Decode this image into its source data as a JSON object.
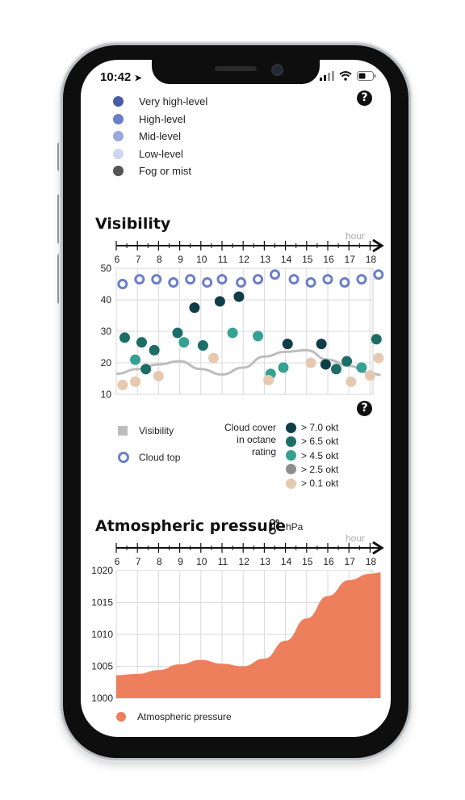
{
  "status_bar": {
    "time": "10:42"
  },
  "cloud_legend": [
    {
      "label": "Very high-level",
      "color": "#4a5ca8"
    },
    {
      "label": "High-level",
      "color": "#6b7fc8"
    },
    {
      "label": "Mid-level",
      "color": "#9aa8dc"
    },
    {
      "label": "Low-level",
      "color": "#cdd5ef"
    },
    {
      "label": "Fog or mist",
      "color": "#555555"
    }
  ],
  "visibility": {
    "title": "Visibility",
    "hour_label": "hour",
    "legend_visibility": "Visibility",
    "legend_cloud_top": "Cloud top",
    "cloud_cover_title": [
      "Cloud cover",
      "in octane",
      "rating"
    ],
    "octane_legend": [
      {
        "label": "> 7.0 okt",
        "color": "#0f3d47"
      },
      {
        "label": "> 6.5 okt",
        "color": "#1b6d65"
      },
      {
        "label": "> 4.5 okt",
        "color": "#35a192"
      },
      {
        "label": "> 2.5 okt",
        "color": "#8e8e8e"
      },
      {
        "label": "> 0.1 okt",
        "color": "#e6c9b1"
      }
    ]
  },
  "chart_data": [
    {
      "type": "scatter",
      "title": "Visibility",
      "x_ticks": [
        "6",
        "7",
        "8",
        "9",
        "10",
        "11",
        "12",
        "13",
        "14",
        "15",
        "16",
        "17",
        "18"
      ],
      "y_ticks": [
        "50",
        "40",
        "30",
        "20",
        "10"
      ],
      "ylim": [
        10,
        50
      ],
      "xlim": [
        6,
        18.5
      ],
      "grid": true,
      "visibility_line": [
        {
          "x": 6,
          "y": 16.5
        },
        {
          "x": 7,
          "y": 18
        },
        {
          "x": 8,
          "y": 19.5
        },
        {
          "x": 9,
          "y": 20.5
        },
        {
          "x": 10,
          "y": 18
        },
        {
          "x": 11,
          "y": 16.3
        },
        {
          "x": 12,
          "y": 18.5
        },
        {
          "x": 13,
          "y": 22
        },
        {
          "x": 14,
          "y": 23.5
        },
        {
          "x": 15,
          "y": 24
        },
        {
          "x": 16,
          "y": 21
        },
        {
          "x": 17,
          "y": 19
        },
        {
          "x": 18,
          "y": 16.8
        },
        {
          "x": 18.5,
          "y": 16.2
        }
      ],
      "cloud_top": [
        {
          "x": 6.3,
          "y": 45
        },
        {
          "x": 7.1,
          "y": 46.5
        },
        {
          "x": 7.9,
          "y": 46.5
        },
        {
          "x": 8.7,
          "y": 45.5
        },
        {
          "x": 9.5,
          "y": 46.5
        },
        {
          "x": 10.3,
          "y": 45.5
        },
        {
          "x": 11,
          "y": 46.5
        },
        {
          "x": 11.9,
          "y": 45.5
        },
        {
          "x": 12.7,
          "y": 46.5
        },
        {
          "x": 13.5,
          "y": 48
        },
        {
          "x": 14.4,
          "y": 46.5
        },
        {
          "x": 15.2,
          "y": 45.5
        },
        {
          "x": 16,
          "y": 46.5
        },
        {
          "x": 16.8,
          "y": 45.5
        },
        {
          "x": 17.6,
          "y": 46.5
        },
        {
          "x": 18.4,
          "y": 48
        }
      ],
      "cloud_cover": [
        {
          "x": 6.4,
          "y": 28,
          "cls": 1
        },
        {
          "x": 6.9,
          "y": 21,
          "cls": 2
        },
        {
          "x": 7.2,
          "y": 26.5,
          "cls": 1
        },
        {
          "x": 7.4,
          "y": 18,
          "cls": 1
        },
        {
          "x": 7.8,
          "y": 24,
          "cls": 1
        },
        {
          "x": 8.9,
          "y": 29.5,
          "cls": 1
        },
        {
          "x": 9.2,
          "y": 26.5,
          "cls": 2
        },
        {
          "x": 9.7,
          "y": 37.5,
          "cls": 0
        },
        {
          "x": 10.1,
          "y": 25.5,
          "cls": 1
        },
        {
          "x": 10.9,
          "y": 39.5,
          "cls": 0
        },
        {
          "x": 11.5,
          "y": 29.5,
          "cls": 2
        },
        {
          "x": 11.8,
          "y": 41,
          "cls": 0
        },
        {
          "x": 12.7,
          "y": 28.5,
          "cls": 2
        },
        {
          "x": 13.3,
          "y": 16.5,
          "cls": 2
        },
        {
          "x": 13.9,
          "y": 18.5,
          "cls": 2
        },
        {
          "x": 14.1,
          "y": 26,
          "cls": 0
        },
        {
          "x": 15.7,
          "y": 26,
          "cls": 0
        },
        {
          "x": 15.9,
          "y": 19.5,
          "cls": 0
        },
        {
          "x": 16.4,
          "y": 18,
          "cls": 1
        },
        {
          "x": 16.9,
          "y": 20.5,
          "cls": 1
        },
        {
          "x": 17.6,
          "y": 18.5,
          "cls": 2
        },
        {
          "x": 18.3,
          "y": 27.5,
          "cls": 1
        },
        {
          "x": 6.3,
          "y": 13,
          "cls": 4
        },
        {
          "x": 6.9,
          "y": 14,
          "cls": 4
        },
        {
          "x": 8.0,
          "y": 15.8,
          "cls": 4
        },
        {
          "x": 10.6,
          "y": 21.5,
          "cls": 4
        },
        {
          "x": 13.2,
          "y": 14.5,
          "cls": 4
        },
        {
          "x": 15.2,
          "y": 20,
          "cls": 4
        },
        {
          "x": 17.1,
          "y": 14,
          "cls": 4
        },
        {
          "x": 18.0,
          "y": 16,
          "cls": 4
        },
        {
          "x": 18.4,
          "y": 21.5,
          "cls": 4
        }
      ]
    },
    {
      "type": "area",
      "title": "Atmospheric pressure",
      "unit": "hPa",
      "x_ticks": [
        "6",
        "7",
        "8",
        "9",
        "10",
        "11",
        "12",
        "13",
        "14",
        "15",
        "16",
        "17",
        "18"
      ],
      "y_ticks": [
        "1020",
        "1015",
        "1010",
        "1005",
        "1000"
      ],
      "ylim": [
        1000,
        1020
      ],
      "xlim": [
        6,
        18.5
      ],
      "series": [
        {
          "name": "Atmospheric pressure",
          "color": "#ee7f5c",
          "points": [
            {
              "x": 6,
              "y": 1003.6
            },
            {
              "x": 7,
              "y": 1003.8
            },
            {
              "x": 8,
              "y": 1004.4
            },
            {
              "x": 9,
              "y": 1005.3
            },
            {
              "x": 10,
              "y": 1006
            },
            {
              "x": 11,
              "y": 1005.4
            },
            {
              "x": 12,
              "y": 1005
            },
            {
              "x": 13,
              "y": 1006.2
            },
            {
              "x": 14,
              "y": 1009
            },
            {
              "x": 15,
              "y": 1012.5
            },
            {
              "x": 16,
              "y": 1016
            },
            {
              "x": 17,
              "y": 1018.5
            },
            {
              "x": 18,
              "y": 1019.5
            },
            {
              "x": 18.5,
              "y": 1019.7
            }
          ]
        }
      ]
    }
  ]
}
